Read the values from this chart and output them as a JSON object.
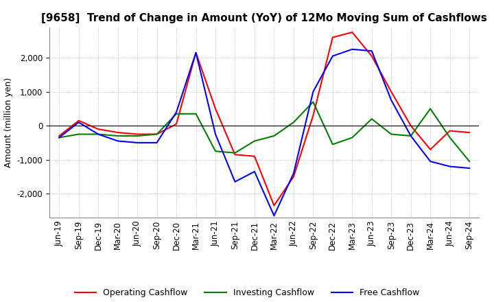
{
  "title": "[9658]  Trend of Change in Amount (YoY) of 12Mo Moving Sum of Cashflows",
  "ylabel": "Amount (million yen)",
  "x_labels": [
    "Jun-19",
    "Sep-19",
    "Dec-19",
    "Mar-20",
    "Jun-20",
    "Sep-20",
    "Dec-20",
    "Mar-21",
    "Jun-21",
    "Sep-21",
    "Dec-21",
    "Mar-22",
    "Jun-22",
    "Sep-22",
    "Dec-22",
    "Mar-23",
    "Jun-23",
    "Sep-23",
    "Dec-23",
    "Mar-24",
    "Jun-24",
    "Sep-24"
  ],
  "operating": [
    -300,
    150,
    -100,
    -200,
    -250,
    -250,
    50,
    2150,
    500,
    -850,
    -900,
    -2350,
    -1500,
    300,
    2600,
    2750,
    2050,
    1000,
    0,
    -700,
    -150,
    -200
  ],
  "investing": [
    -350,
    -250,
    -250,
    -300,
    -300,
    -250,
    350,
    350,
    -750,
    -800,
    -450,
    -300,
    100,
    700,
    -550,
    -350,
    200,
    -250,
    -300,
    500,
    -350,
    -1050
  ],
  "free": [
    -350,
    100,
    -250,
    -450,
    -500,
    -500,
    400,
    2150,
    -250,
    -1650,
    -1350,
    -2650,
    -1400,
    1000,
    2050,
    2250,
    2200,
    750,
    -300,
    -1050,
    -1200,
    -1250
  ],
  "ylim": [
    -2700,
    2900
  ],
  "yticks": [
    -2000,
    -1000,
    0,
    1000,
    2000
  ],
  "operating_color": "#FF0000",
  "investing_color": "#008000",
  "free_color": "#0000FF",
  "background_color": "#FFFFFF",
  "grid_color": "#AAAAAA",
  "title_fontsize": 11,
  "label_fontsize": 9,
  "tick_fontsize": 8.5
}
